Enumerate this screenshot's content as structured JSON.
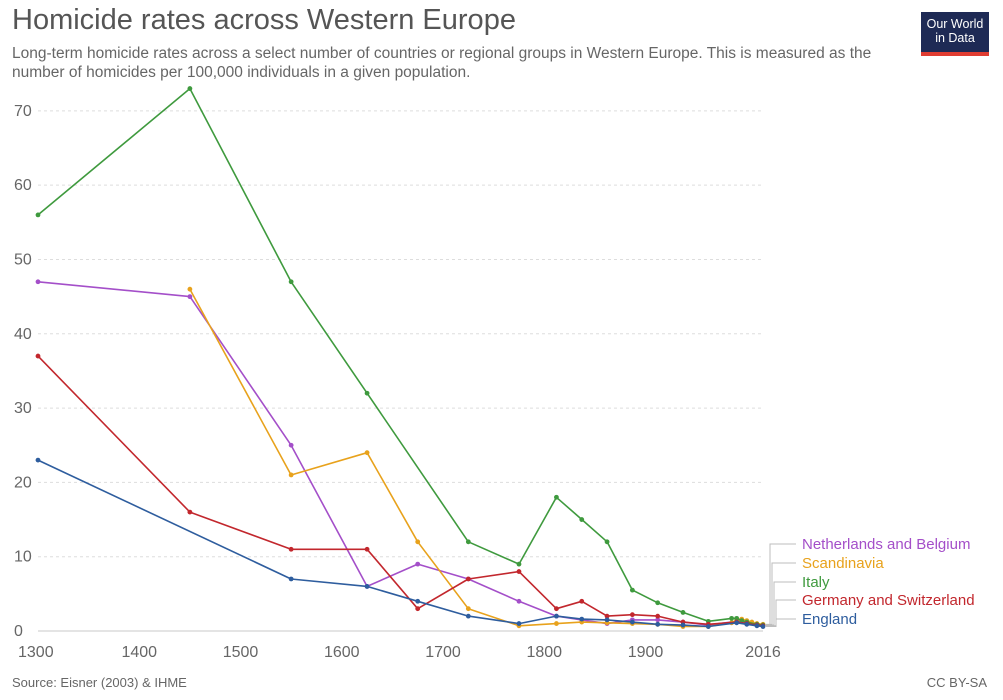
{
  "header": {
    "title": "Homicide rates across Western Europe",
    "subtitle": "Long-term homicide rates across a select number of countries or regional groups in Western Europe. This is measured as the number of homicides per 100,000 individuals in a given population.",
    "logo_line1": "Our World",
    "logo_line2": "in Data"
  },
  "footer": {
    "source": "Source: Eisner (2003) & IHME",
    "license": "CC BY-SA"
  },
  "colors": {
    "netherlands_belgium": "#a44fc9",
    "scandinavia": "#e8a21c",
    "italy": "#3f9a3e",
    "germany_switzerland": "#c2272d",
    "england": "#2e5d9e",
    "grid": "#dddddd"
  },
  "chart_data": {
    "type": "line",
    "title": "Homicide rates across Western Europe",
    "xlabel": "",
    "ylabel": "",
    "xlim": [
      1300,
      2016
    ],
    "ylim": [
      0,
      72
    ],
    "x_ticks": [
      "1300",
      "1400",
      "1500",
      "1600",
      "1700",
      "1800",
      "1900",
      "2016"
    ],
    "x_tick_values": [
      1300,
      1400,
      1500,
      1600,
      1700,
      1800,
      1900,
      2016
    ],
    "y_ticks": [
      "0",
      "10",
      "20",
      "30",
      "40",
      "50",
      "60",
      "70"
    ],
    "y_tick_values": [
      0,
      10,
      20,
      30,
      40,
      50,
      60,
      70
    ],
    "grid": "horizontal dashed",
    "legend": "right, at line ends",
    "series": [
      {
        "name": "Netherlands and Belgium",
        "color_key": "netherlands_belgium",
        "points": [
          [
            1300,
            47
          ],
          [
            1450,
            45
          ],
          [
            1550,
            25
          ],
          [
            1625,
            6
          ],
          [
            1675,
            9
          ],
          [
            1725,
            7
          ],
          [
            1775,
            4
          ],
          [
            1812,
            2
          ],
          [
            1837,
            1.5
          ],
          [
            1862,
            1
          ],
          [
            1887,
            1.5
          ],
          [
            1912,
            1.5
          ],
          [
            1937,
            1.2
          ],
          [
            1962,
            0.8
          ],
          [
            1990,
            1.3
          ],
          [
            2000,
            1.1
          ],
          [
            2010,
            0.9
          ],
          [
            2016,
            0.8
          ]
        ]
      },
      {
        "name": "Scandinavia",
        "color_key": "scandinavia",
        "points": [
          [
            1450,
            46
          ],
          [
            1550,
            21
          ],
          [
            1625,
            24
          ],
          [
            1675,
            12
          ],
          [
            1725,
            3
          ],
          [
            1775,
            0.7
          ],
          [
            1812,
            1
          ],
          [
            1837,
            1.2
          ],
          [
            1862,
            1.1
          ],
          [
            1887,
            1
          ],
          [
            1912,
            0.9
          ],
          [
            1937,
            0.6
          ],
          [
            1962,
            0.6
          ],
          [
            1985,
            1.1
          ],
          [
            1990,
            1.5
          ],
          [
            1995,
            1.6
          ],
          [
            2000,
            1.4
          ],
          [
            2005,
            1.2
          ],
          [
            2010,
            1
          ],
          [
            2016,
            0.9
          ]
        ]
      },
      {
        "name": "Italy",
        "color_key": "italy",
        "points": [
          [
            1300,
            56
          ],
          [
            1450,
            73
          ],
          [
            1550,
            47
          ],
          [
            1625,
            32
          ],
          [
            1725,
            12
          ],
          [
            1775,
            9
          ],
          [
            1812,
            18
          ],
          [
            1837,
            15
          ],
          [
            1862,
            12
          ],
          [
            1887,
            5.5
          ],
          [
            1912,
            3.8
          ],
          [
            1937,
            2.5
          ],
          [
            1962,
            1.3
          ],
          [
            1985,
            1.7
          ],
          [
            1990,
            1.7
          ],
          [
            1995,
            1.4
          ],
          [
            2000,
            1.2
          ],
          [
            2010,
            0.9
          ],
          [
            2016,
            0.8
          ]
        ]
      },
      {
        "name": "Germany and Switzerland",
        "color_key": "germany_switzerland",
        "points": [
          [
            1300,
            37
          ],
          [
            1450,
            16
          ],
          [
            1550,
            11
          ],
          [
            1625,
            11
          ],
          [
            1675,
            3
          ],
          [
            1725,
            7
          ],
          [
            1775,
            8
          ],
          [
            1812,
            3
          ],
          [
            1837,
            4
          ],
          [
            1862,
            2
          ],
          [
            1887,
            2.2
          ],
          [
            1912,
            2
          ],
          [
            1937,
            1.2
          ],
          [
            1962,
            0.9
          ],
          [
            1990,
            1.2
          ],
          [
            2000,
            1
          ],
          [
            2010,
            0.8
          ],
          [
            2016,
            0.7
          ]
        ]
      },
      {
        "name": "England",
        "color_key": "england",
        "points": [
          [
            1300,
            23
          ],
          [
            1550,
            7
          ],
          [
            1625,
            6
          ],
          [
            1675,
            4
          ],
          [
            1725,
            2
          ],
          [
            1775,
            1
          ],
          [
            1812,
            2
          ],
          [
            1837,
            1.6
          ],
          [
            1862,
            1.5
          ],
          [
            1887,
            1.2
          ],
          [
            1912,
            0.9
          ],
          [
            1937,
            0.8
          ],
          [
            1962,
            0.6
          ],
          [
            1990,
            1.1
          ],
          [
            2000,
            0.9
          ],
          [
            2010,
            0.7
          ],
          [
            2016,
            0.6
          ]
        ]
      }
    ]
  }
}
